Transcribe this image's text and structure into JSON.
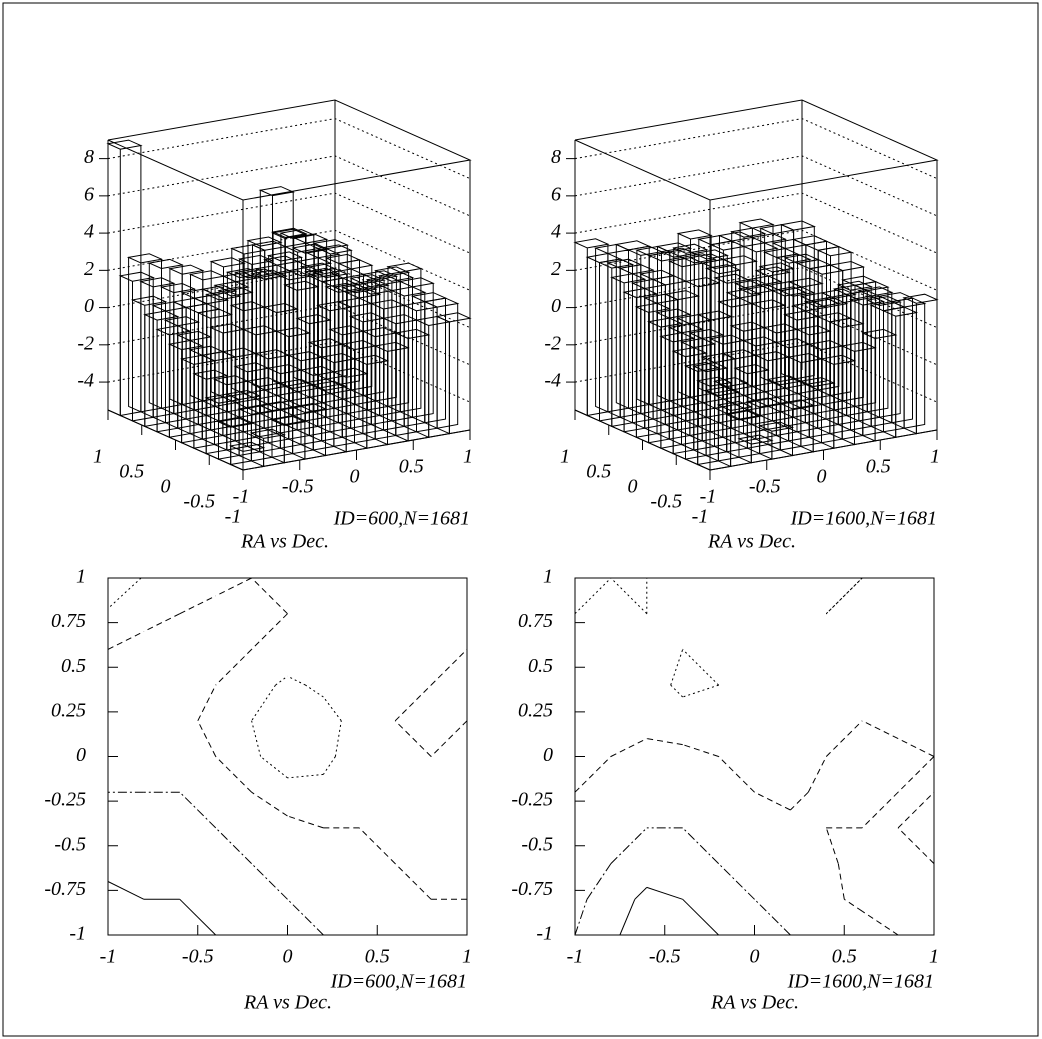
{
  "chart_data": [
    {
      "type": "lego",
      "title": "RA vs Dec.",
      "id_label": "ID=600,N=1681",
      "xlim": [
        -1,
        1
      ],
      "ylim": [
        -1,
        1
      ],
      "zlim": [
        -5.5,
        9
      ],
      "xticks": [
        -1,
        -0.5,
        0,
        0.5,
        1
      ],
      "yticks": [
        -1,
        -0.5,
        0,
        0.5,
        1
      ],
      "zticks": [
        -4,
        -2,
        0,
        2,
        4,
        6,
        8
      ],
      "z": [
        [
          -4.5,
          -4,
          -3.5,
          -3,
          -2,
          -1.5,
          -1,
          -0.5,
          0,
          0.5,
          0.5
        ],
        [
          -3.5,
          -3,
          -3,
          -2,
          -1.5,
          -1,
          -0.5,
          0,
          0.5,
          1,
          1
        ],
        [
          -2.5,
          -2.5,
          -2,
          -1.5,
          -1,
          -0.5,
          0,
          0.5,
          1,
          1.5,
          1
        ],
        [
          -1.5,
          -2,
          -1.5,
          -1,
          0,
          0.5,
          1,
          1,
          1.5,
          2,
          1.5
        ],
        [
          -1,
          -1,
          -1,
          0,
          1,
          2,
          2.5,
          1.5,
          1,
          1.5,
          2
        ],
        [
          -0.5,
          -1,
          0,
          1,
          2.5,
          4.5,
          3.5,
          2,
          1,
          1,
          1.5
        ],
        [
          0,
          -0.5,
          0.5,
          1.5,
          3,
          6.5,
          4,
          2,
          1,
          0.5,
          1
        ],
        [
          0.5,
          0,
          0.5,
          1,
          2,
          3.5,
          2.5,
          1.5,
          1,
          1,
          0.5
        ],
        [
          1,
          0.5,
          0.5,
          0.5,
          1,
          1.5,
          1.5,
          1,
          1.5,
          2,
          1
        ],
        [
          2,
          1.5,
          1,
          0.5,
          0.5,
          1,
          1,
          1.5,
          2,
          1.5,
          1
        ],
        [
          8.8,
          2.5,
          2,
          1.5,
          1,
          1.5,
          2,
          2,
          2.5,
          2,
          1.5
        ]
      ]
    },
    {
      "type": "lego",
      "title": "RA vs Dec.",
      "id_label": "ID=1600,N=1681",
      "xlim": [
        -1,
        1
      ],
      "ylim": [
        -1,
        1
      ],
      "zlim": [
        -5.5,
        9
      ],
      "xticks": [
        -1,
        -0.5,
        0,
        0.5,
        1
      ],
      "yticks": [
        -1,
        -0.5,
        0,
        0.5,
        1
      ],
      "zticks": [
        -4,
        -2,
        0,
        2,
        4,
        6,
        8
      ],
      "z": [
        [
          -1,
          -2.5,
          -4.5,
          -4,
          -3,
          -2,
          -1,
          -0.5,
          0,
          1,
          1.5
        ],
        [
          -0.5,
          -2,
          -3.5,
          -3,
          -2,
          -1,
          -0.5,
          0.5,
          1.5,
          1,
          1
        ],
        [
          0,
          -1,
          -2,
          -1.5,
          -1,
          -0.5,
          0,
          0.5,
          2,
          1.5,
          1
        ],
        [
          0.5,
          0,
          -1,
          -1,
          -0.5,
          0,
          0.5,
          1,
          1,
          1,
          0.5
        ],
        [
          1,
          0.5,
          0,
          -0.5,
          0,
          1,
          1.5,
          0.5,
          0.5,
          1,
          1
        ],
        [
          1.5,
          1,
          0.5,
          0.5,
          1,
          1.5,
          2.5,
          1,
          0.5,
          0.5,
          1
        ],
        [
          2,
          1.5,
          1.5,
          2,
          2.5,
          1,
          1.5,
          1,
          1,
          1.5,
          1.5
        ],
        [
          2.5,
          2,
          2,
          3.5,
          3,
          1.5,
          1,
          1.5,
          2,
          1.5,
          2
        ],
        [
          3,
          2.5,
          2,
          3,
          2.5,
          2,
          2,
          2.5,
          2,
          1.5,
          2
        ],
        [
          3,
          2.5,
          3,
          2.5,
          2,
          2,
          2.5,
          3,
          2.5,
          2,
          2
        ],
        [
          3.5,
          3,
          3,
          2.5,
          2.5,
          3,
          2.5,
          2.5,
          3,
          2.5,
          2.5
        ]
      ]
    },
    {
      "type": "contour",
      "title": "RA vs Dec.",
      "id_label": "ID=600,N=1681",
      "xlim": [
        -1,
        1
      ],
      "ylim": [
        -1,
        1
      ],
      "xticks": [
        -1,
        -0.5,
        0,
        0.5,
        1
      ],
      "yticks": [
        -1,
        -0.75,
        -0.5,
        -0.25,
        0,
        0.25,
        0.5,
        0.75,
        1
      ],
      "levels": [
        -3,
        -1,
        1,
        3
      ],
      "z": [
        [
          -4.5,
          -4,
          -3.5,
          -3,
          -2,
          -1.5,
          -1,
          -0.5,
          0,
          0.5,
          0.5
        ],
        [
          -3.5,
          -3,
          -3,
          -2,
          -1.5,
          -1,
          -0.5,
          0,
          0.5,
          1,
          1
        ],
        [
          -2.5,
          -2.5,
          -2,
          -1.5,
          -1,
          -0.5,
          0,
          0.5,
          1,
          1.5,
          1
        ],
        [
          -1.5,
          -2,
          -1.5,
          -1,
          0,
          0.5,
          1,
          1,
          1.5,
          2,
          1.5
        ],
        [
          -1,
          -1,
          -1,
          0,
          1,
          2,
          2.5,
          1.5,
          1,
          1.5,
          2
        ],
        [
          -0.5,
          -1,
          0,
          1,
          2.5,
          4.5,
          3.5,
          2,
          1,
          1,
          1.5
        ],
        [
          0,
          -0.5,
          0.5,
          1.5,
          3,
          6.5,
          4,
          2,
          1,
          0.5,
          1
        ],
        [
          0.5,
          0,
          0.5,
          1,
          2,
          3.5,
          2.5,
          1.5,
          1,
          1,
          0.5
        ],
        [
          1,
          0.5,
          0.5,
          0.5,
          1,
          1.5,
          1.5,
          1,
          1.5,
          2,
          1
        ],
        [
          2,
          1.5,
          1,
          0.5,
          0.5,
          1,
          1,
          1.5,
          2,
          1.5,
          1
        ],
        [
          8.8,
          2.5,
          2,
          1.5,
          1,
          1.5,
          2,
          2,
          2.5,
          2,
          1.5
        ]
      ]
    },
    {
      "type": "contour",
      "title": "RA vs Dec.",
      "id_label": "ID=1600,N=1681",
      "xlim": [
        -1,
        1
      ],
      "ylim": [
        -1,
        1
      ],
      "xticks": [
        -1,
        -0.5,
        0,
        0.5,
        1
      ],
      "yticks": [
        -1,
        -0.75,
        -0.5,
        -0.25,
        0,
        0.25,
        0.5,
        0.75,
        1
      ],
      "levels": [
        -3,
        -1,
        1,
        3
      ],
      "z": [
        [
          -1,
          -2.5,
          -4.5,
          -4,
          -3,
          -2,
          -1,
          -0.5,
          0,
          1,
          1.5
        ],
        [
          -0.5,
          -2,
          -3.5,
          -3,
          -2,
          -1,
          -0.5,
          0.5,
          1.5,
          1,
          1
        ],
        [
          0,
          -1,
          -2,
          -1.5,
          -1,
          -0.5,
          0,
          0.5,
          2,
          1.5,
          1
        ],
        [
          0.5,
          0,
          -1,
          -1,
          -0.5,
          0,
          0.5,
          1,
          1,
          1,
          0.5
        ],
        [
          1,
          0.5,
          0,
          -0.5,
          0,
          1,
          1.5,
          0.5,
          0.5,
          1,
          1
        ],
        [
          1.5,
          1,
          0.5,
          0.5,
          1,
          1.5,
          2.5,
          1,
          0.5,
          0.5,
          1
        ],
        [
          2,
          1.5,
          1.5,
          2,
          2.5,
          1,
          1.5,
          1,
          1,
          1.5,
          1.5
        ],
        [
          2.5,
          2,
          2,
          3.5,
          3,
          1.5,
          1,
          1.5,
          2,
          1.5,
          2
        ],
        [
          3,
          2.5,
          2,
          3,
          2.5,
          2,
          2,
          2.5,
          2,
          1.5,
          2
        ],
        [
          3,
          2.5,
          3,
          2.5,
          2,
          2,
          2.5,
          3,
          2.5,
          2,
          2
        ],
        [
          3.5,
          3,
          3,
          2.5,
          2.5,
          3,
          2.5,
          2.5,
          3,
          2.5,
          2.5
        ]
      ]
    }
  ]
}
